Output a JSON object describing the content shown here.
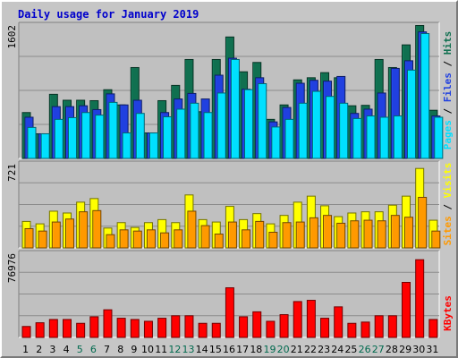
{
  "title": "Daily usage for January 2019",
  "chart_data": {
    "type": "bar",
    "title": "Daily usage for January 2019",
    "categories": [
      "1",
      "2",
      "3",
      "4",
      "5",
      "6",
      "7",
      "8",
      "9",
      "10",
      "11",
      "12",
      "13",
      "14",
      "15",
      "16",
      "17",
      "18",
      "19",
      "20",
      "21",
      "22",
      "23",
      "24",
      "25",
      "26",
      "27",
      "28",
      "29",
      "30",
      "31"
    ],
    "weekend_days": [
      "5",
      "6",
      "12",
      "13",
      "19",
      "20",
      "26",
      "27"
    ],
    "panels": [
      {
        "id": "hits_files_pages",
        "ymax_label": "1602",
        "ylim": [
          0,
          1602
        ],
        "legend": [
          "Pages",
          "Files",
          "Hits"
        ],
        "series": [
          {
            "name": "Hits",
            "color": "#107050",
            "values": [
              540,
              290,
              755,
              685,
              685,
              680,
              809,
              630,
              1070,
              300,
              680,
              860,
              1165,
              550,
              1165,
              1430,
              1020,
              1130,
              460,
              630,
              925,
              950,
              1010,
              950,
              620,
              625,
              1165,
              1070,
              1337,
              1565,
              567
            ]
          },
          {
            "name": "Files",
            "color": "#2040e0",
            "values": [
              485,
              290,
              610,
              610,
              620,
              575,
              760,
              630,
              685,
              300,
              540,
              700,
              765,
              700,
              980,
              1180,
              815,
              950,
              430,
              600,
              885,
              920,
              910,
              965,
              530,
              580,
              770,
              1060,
              1150,
              1490,
              500
            ]
          },
          {
            "name": "Pages",
            "color": "#00e0ff",
            "values": [
              365,
              290,
              460,
              480,
              540,
              510,
              660,
              300,
              530,
              300,
              490,
              580,
              650,
              540,
              770,
              1165,
              810,
              880,
              370,
              460,
              650,
              790,
              730,
              650,
              470,
              500,
              485,
              500,
              1040,
              1470,
              485
            ]
          }
        ]
      },
      {
        "id": "visits_sites",
        "ymax_label": "721",
        "ylim": [
          0,
          721
        ],
        "legend": [
          "Sites",
          "Visits"
        ],
        "series": [
          {
            "name": "Visits",
            "color": "#ffff00",
            "values": [
              220,
              200,
              305,
              290,
              380,
              410,
              165,
              210,
              170,
              210,
              235,
              210,
              440,
              235,
              215,
              345,
              235,
              285,
              200,
              270,
              380,
              430,
              350,
              260,
              290,
              300,
              300,
              355,
              430,
              660,
              230
            ]
          },
          {
            "name": "Sites",
            "color": "#ff9900",
            "values": [
              160,
              140,
              215,
              240,
              300,
              310,
              110,
              150,
              140,
              150,
              125,
              150,
              305,
              185,
              115,
              215,
              150,
              220,
              130,
              210,
              215,
              250,
              270,
              205,
              225,
              230,
              225,
              270,
              255,
              420,
              140
            ]
          }
        ]
      },
      {
        "id": "kbytes",
        "ymax_label": "76976",
        "ylim": [
          0,
          76976
        ],
        "legend": [
          "KBytes"
        ],
        "series": [
          {
            "name": "KBytes",
            "color": "#ff0000",
            "values": [
              9700,
              13000,
              15900,
              15900,
              12500,
              18300,
              24500,
              17000,
              15900,
              14300,
              17000,
              19200,
              19200,
              12500,
              12500,
              44000,
              18300,
              22700,
              14300,
              20200,
              31800,
              32900,
              17000,
              27100,
              12500,
              13600,
              19200,
              19200,
              48800,
              68900,
              15900
            ]
          }
        ]
      }
    ]
  }
}
